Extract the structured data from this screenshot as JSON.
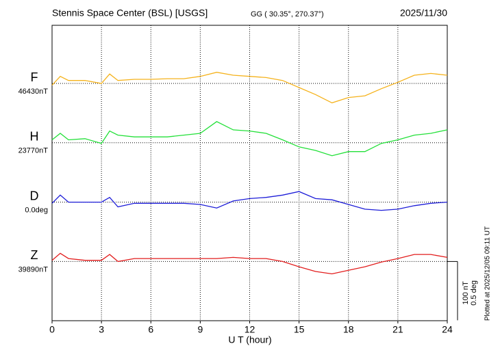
{
  "chart_data": {
    "type": "line",
    "title": "Stennis Space Center (BSL)  [USGS]",
    "subtitle": "GG ( 30.35°, 270.37°)",
    "date": "2025/11/30",
    "xlabel": "U T (hour)",
    "note": "Plotted at 2025/12/05 09:11 UT",
    "xlim": [
      0,
      24
    ],
    "xticks": [
      0,
      3,
      6,
      9,
      12,
      15,
      18,
      21,
      24
    ],
    "grid": true,
    "scale_bar": {
      "nT": {
        "value": 100,
        "label": "100 nT"
      },
      "deg": {
        "value": 0.5,
        "label": "0.5 deg"
      }
    },
    "x": [
      0,
      0.5,
      1,
      2,
      3,
      3.5,
      4,
      5,
      6,
      7,
      8,
      9,
      10,
      11,
      12,
      13,
      14,
      15,
      16,
      17,
      18,
      19,
      20,
      21,
      22,
      23,
      24
    ],
    "series": [
      {
        "name": "F",
        "baseline": "46430nT",
        "scale": "nT",
        "color": "#f5b21b",
        "values": [
          -3,
          12,
          5,
          5,
          0,
          16,
          5,
          7,
          7,
          8,
          8,
          12,
          19,
          14,
          12,
          10,
          5,
          -7,
          -19,
          -33,
          -24,
          -21,
          -9,
          2,
          14,
          17,
          14
        ]
      },
      {
        "name": "H",
        "baseline": "23770nT",
        "scale": "nT",
        "color": "#22e038",
        "values": [
          5,
          16,
          5,
          7,
          -1,
          20,
          13,
          10,
          10,
          10,
          13,
          16,
          36,
          22,
          20,
          16,
          5,
          -7,
          -13,
          -22,
          -15,
          -15,
          -1,
          5,
          13,
          16,
          22
        ]
      },
      {
        "name": "D",
        "baseline": "0.0deg",
        "scale": "deg",
        "color": "#1c1cd8",
        "values": [
          -0.01,
          0.06,
          0,
          0,
          0,
          0.04,
          -0.04,
          -0.01,
          -0.01,
          -0.01,
          -0.01,
          -0.02,
          -0.05,
          0.01,
          0.03,
          0.04,
          0.06,
          0.09,
          0.03,
          0.02,
          -0.02,
          -0.06,
          -0.07,
          -0.06,
          -0.03,
          -0.01,
          0
        ]
      },
      {
        "name": "Z",
        "baseline": "39890nT",
        "scale": "nT",
        "color": "#e21c1c",
        "values": [
          2,
          14,
          5,
          2,
          2,
          12,
          0,
          5,
          5,
          5,
          5,
          5,
          5,
          7,
          5,
          5,
          0,
          -9,
          -17,
          -21,
          -15,
          -9,
          -1,
          5,
          12,
          12,
          7
        ]
      }
    ]
  }
}
